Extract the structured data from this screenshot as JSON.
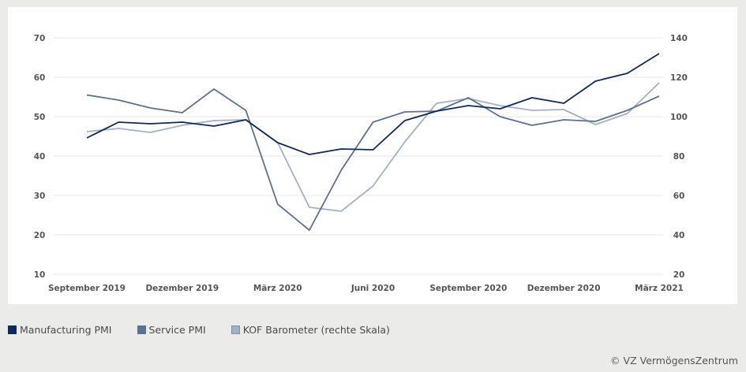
{
  "chart_data": {
    "type": "line",
    "title": "",
    "xlabel": "",
    "ylabel": "",
    "x": [
      "2019-09",
      "2019-10",
      "2019-11",
      "2019-12",
      "2020-01",
      "2020-02",
      "2020-03",
      "2020-04",
      "2020-05",
      "2020-06",
      "2020-07",
      "2020-08",
      "2020-09",
      "2020-10",
      "2020-11",
      "2020-12",
      "2021-01",
      "2021-02",
      "2021-03"
    ],
    "x_tick_labels": [
      {
        "index": 0,
        "label": "September 2019"
      },
      {
        "index": 3,
        "label": "Dezember 2019"
      },
      {
        "index": 6,
        "label": "März 2020"
      },
      {
        "index": 9,
        "label": "Juni 2020"
      },
      {
        "index": 12,
        "label": "September 2020"
      },
      {
        "index": 15,
        "label": "Dezember 2020"
      },
      {
        "index": 18,
        "label": "März 2021"
      }
    ],
    "ylim_left": [
      10,
      70
    ],
    "yticks_left": [
      70,
      60,
      50,
      40,
      30,
      20,
      10
    ],
    "ylim_right": [
      20,
      140
    ],
    "yticks_right": [
      140,
      120,
      100,
      80,
      60,
      40,
      20
    ],
    "grid": true,
    "legend_position": "bottom-left",
    "series": [
      {
        "name": "Manufacturing PMI",
        "axis": "left",
        "color": "#0d2a5c",
        "values": [
          44.6,
          48.6,
          48.2,
          48.6,
          47.6,
          49.2,
          43.4,
          40.4,
          41.8,
          41.6,
          49.0,
          51.4,
          52.8,
          52.0,
          54.8,
          53.4,
          59.0,
          61.0,
          66.0
        ]
      },
      {
        "name": "Service PMI",
        "axis": "left",
        "color": "#5b7191",
        "values": [
          55.5,
          54.2,
          52.2,
          51.0,
          57.0,
          51.6,
          27.8,
          21.2,
          36.4,
          48.6,
          51.2,
          51.4,
          54.8,
          50.0,
          47.8,
          49.2,
          48.8,
          51.6,
          55.2
        ]
      },
      {
        "name": "KOF Barometer (rechte Skala)",
        "axis": "right",
        "color": "#a3b1c6",
        "values": [
          92.4,
          94.0,
          92.0,
          95.6,
          98.0,
          98.4,
          86.8,
          54.0,
          52.0,
          64.8,
          87.2,
          106.8,
          109.2,
          105.6,
          103.2,
          103.6,
          96.0,
          101.6,
          117.2
        ]
      }
    ]
  },
  "legend": [
    {
      "label": "Manufacturing PMI",
      "color": "#0d2a5c"
    },
    {
      "label": "Service PMI",
      "color": "#5b7191"
    },
    {
      "label": "KOF Barometer (rechte Skala)",
      "color": "#a3b1c6"
    }
  ],
  "credit": "© VZ VermögensZentrum"
}
